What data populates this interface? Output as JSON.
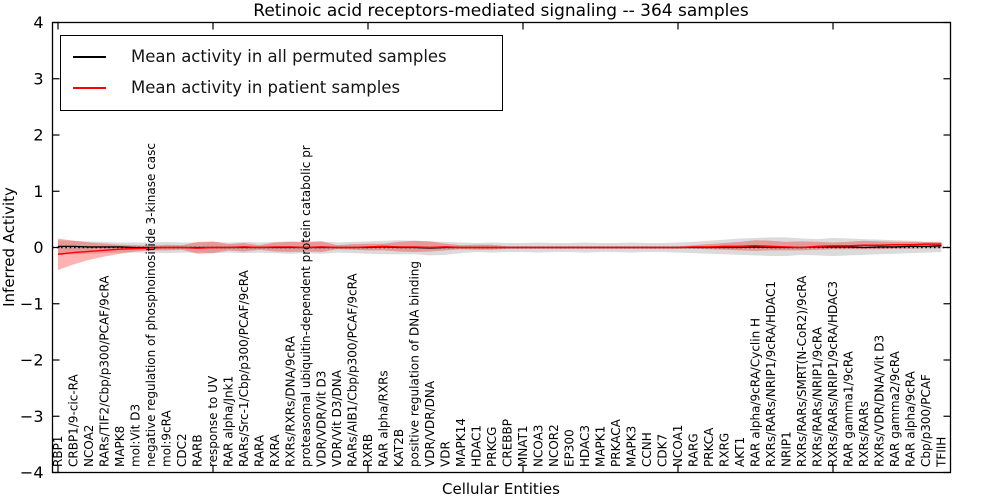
{
  "chart_data": {
    "type": "line",
    "title": "Retinoic acid receptors-mediated signaling -- 364 samples",
    "xlabel": "Cellular Entities",
    "ylabel": "Inferred Activity",
    "ylim": [
      -4,
      4
    ],
    "grid": false,
    "legend_position": "upper left",
    "ytick_values": [
      4,
      3,
      2,
      1,
      0,
      -1,
      -2,
      -3,
      -4
    ],
    "ytick_labels": [
      "4",
      "3",
      "2",
      "1",
      "0",
      "−1",
      "−2",
      "−3",
      "−4"
    ],
    "xtick_indices": [
      0,
      10,
      20,
      30,
      40,
      50
    ],
    "zero_line": {
      "style": "dotted",
      "color": "#000000"
    },
    "categories": [
      "RBP1",
      "CRBP1/9-cic-RA",
      "NCOA2",
      "RARs/TIF2/Cbp/p300/PCAF/9cRA",
      "MAPK8",
      "mol:Vit D3",
      "negative regulation of phosphoinositide 3-kinase casc",
      "mol:9cRA",
      "CDC2",
      "RARB",
      "response to UV",
      "RAR alpha/Jnk1",
      "RARs/Src-1/Cbp/p300/PCAF/9cRA",
      "RARA",
      "RXRA",
      "RXRs/RXRs/DNA/9cRA",
      "proteasomal ubiquitin-dependent protein catabolic pr",
      "VDR/VDR/Vit D3",
      "VDR/Vit D3/DNA",
      "RARs/AIB1/Cbp/p300/PCAF/9cRA",
      "RXRB",
      "RAR alpha/RXRs",
      "KAT2B",
      "positive regulation of DNA binding",
      "VDR/VDR/DNA",
      "VDR",
      "MAPK14",
      "HDAC1",
      "PRKCG",
      "CREBBP",
      "MNAT1",
      "NCOA3",
      "NCOR2",
      "EP300",
      "HDAC3",
      "MAPK1",
      "PRKACA",
      "MAPK3",
      "CCNH",
      "CDK7",
      "NCOA1",
      "RARG",
      "PRKCA",
      "RXRG",
      "AKT1",
      "RAR alpha/9cRA/Cyclin H",
      "RXRs/RARs/NRIP1/9cRA/HDAC1",
      "NRIP1",
      "RXRs/RARs/SMRT(N-CoR2)/9cRA",
      "RXRs/RARs/NRIP1/9cRA",
      "RXRs/RARs/NRIP1/9cRA/HDAC3",
      "RAR gamma1/9cRA",
      "RXRs/RARs",
      "RXRs/VDR/DNA/Vit D3",
      "RAR gamma2/9cRA",
      "RAR alpha/9cRA",
      "Cbp/p300/PCAF",
      "TFIIH"
    ],
    "series": [
      {
        "name": "Mean activity in all permuted samples",
        "color": "#000000",
        "values": [
          0.02,
          0.02,
          0.01,
          0.01,
          0.01,
          0,
          0,
          0,
          0,
          0,
          0,
          0,
          0,
          0,
          0,
          0,
          0,
          0,
          0,
          0,
          0,
          0.01,
          0,
          0,
          -0.01,
          0,
          0,
          0,
          0,
          0,
          0,
          0,
          0,
          0,
          0,
          0,
          0,
          0,
          0,
          0,
          0,
          0,
          0,
          0,
          0,
          0.01,
          0,
          0,
          0,
          0.01,
          0.01,
          0.01,
          0,
          0.01,
          0.01,
          0.02,
          0.02,
          0.03
        ]
      },
      {
        "name": "Mean activity in patient samples",
        "color": "#ff0000",
        "values": [
          -0.12,
          -0.09,
          -0.07,
          -0.05,
          -0.03,
          -0.02,
          -0.01,
          0,
          0,
          -0.01,
          0,
          0,
          0.01,
          0,
          0.01,
          0.01,
          0,
          0.01,
          0,
          0,
          0.01,
          0.02,
          0.01,
          0.01,
          0,
          0.01,
          0,
          0,
          0,
          0,
          0,
          0,
          0,
          0,
          0,
          0,
          0,
          0,
          0,
          0,
          0,
          0.01,
          0.01,
          0.02,
          0.02,
          0.03,
          0.02,
          0.01,
          0,
          0.02,
          0.03,
          0.03,
          0.04,
          0.04,
          0.05,
          0.05,
          0.06,
          0.06
        ]
      }
    ],
    "bands": [
      {
        "name": "permuted-samples-range",
        "color": "#999999",
        "opacity": 0.35,
        "upper": [
          0.13,
          0.12,
          0.11,
          0.1,
          0.09,
          0.09,
          0.09,
          0.1,
          0.09,
          0.09,
          0.1,
          0.09,
          0.1,
          0.09,
          0.1,
          0.11,
          0.1,
          0.11,
          0.09,
          0.1,
          0.11,
          0.12,
          0.13,
          0.12,
          0.11,
          0.1,
          0.09,
          0.08,
          0.09,
          0.08,
          0.08,
          0.09,
          0.08,
          0.08,
          0.09,
          0.08,
          0.08,
          0.09,
          0.08,
          0.08,
          0.09,
          0.1,
          0.12,
          0.14,
          0.16,
          0.17,
          0.18,
          0.18,
          0.16,
          0.15,
          0.17,
          0.16,
          0.15,
          0.14,
          0.13,
          0.12,
          0.1,
          0.09
        ],
        "lower": [
          -0.13,
          -0.12,
          -0.11,
          -0.1,
          -0.09,
          -0.09,
          -0.09,
          -0.1,
          -0.09,
          -0.09,
          -0.1,
          -0.09,
          -0.1,
          -0.09,
          -0.1,
          -0.11,
          -0.1,
          -0.11,
          -0.09,
          -0.1,
          -0.11,
          -0.12,
          -0.12,
          -0.12,
          -0.14,
          -0.13,
          -0.1,
          -0.08,
          -0.09,
          -0.08,
          -0.08,
          -0.09,
          -0.08,
          -0.08,
          -0.09,
          -0.08,
          -0.08,
          -0.09,
          -0.08,
          -0.08,
          -0.09,
          -0.1,
          -0.11,
          -0.12,
          -0.13,
          -0.14,
          -0.15,
          -0.15,
          -0.13,
          -0.14,
          -0.15,
          -0.14,
          -0.13,
          -0.12,
          -0.11,
          -0.1,
          -0.09,
          -0.08
        ]
      },
      {
        "name": "patient-samples-range",
        "color": "#ff0000",
        "opacity": 0.3,
        "upper": [
          0.16,
          0.12,
          0.09,
          0.07,
          0.05,
          0.04,
          0.03,
          0.05,
          0.04,
          0.1,
          0.11,
          0.06,
          0.08,
          0.04,
          0.09,
          0.1,
          0.1,
          0.11,
          0.04,
          0.06,
          0.07,
          0.07,
          0.1,
          0.12,
          0.11,
          0.07,
          0.04,
          0.05,
          0.05,
          0.02,
          0.02,
          0.02,
          0.02,
          0.02,
          0.02,
          0.02,
          0.02,
          0.02,
          0.02,
          0.02,
          0.02,
          0.04,
          0.06,
          0.08,
          0.1,
          0.13,
          0.12,
          0.1,
          0.11,
          0.1,
          0.09,
          0.1,
          0.12,
          0.11,
          0.1,
          0.1,
          0.1,
          0.1
        ],
        "lower": [
          -0.4,
          -0.3,
          -0.22,
          -0.16,
          -0.11,
          -0.07,
          -0.05,
          -0.05,
          -0.04,
          -0.11,
          -0.1,
          -0.05,
          -0.07,
          -0.04,
          -0.07,
          -0.08,
          -0.07,
          -0.08,
          -0.03,
          -0.04,
          -0.05,
          -0.05,
          -0.07,
          -0.08,
          -0.07,
          -0.05,
          -0.03,
          -0.04,
          -0.04,
          -0.02,
          -0.02,
          -0.02,
          -0.02,
          -0.02,
          -0.02,
          -0.02,
          -0.02,
          -0.02,
          -0.02,
          -0.02,
          -0.02,
          -0.02,
          -0.03,
          -0.04,
          -0.05,
          -0.06,
          -0.05,
          -0.05,
          -0.05,
          -0.04,
          -0.03,
          -0.03,
          -0.03,
          -0.03,
          -0.02,
          -0.02,
          -0.01,
          -0.01
        ]
      }
    ]
  }
}
